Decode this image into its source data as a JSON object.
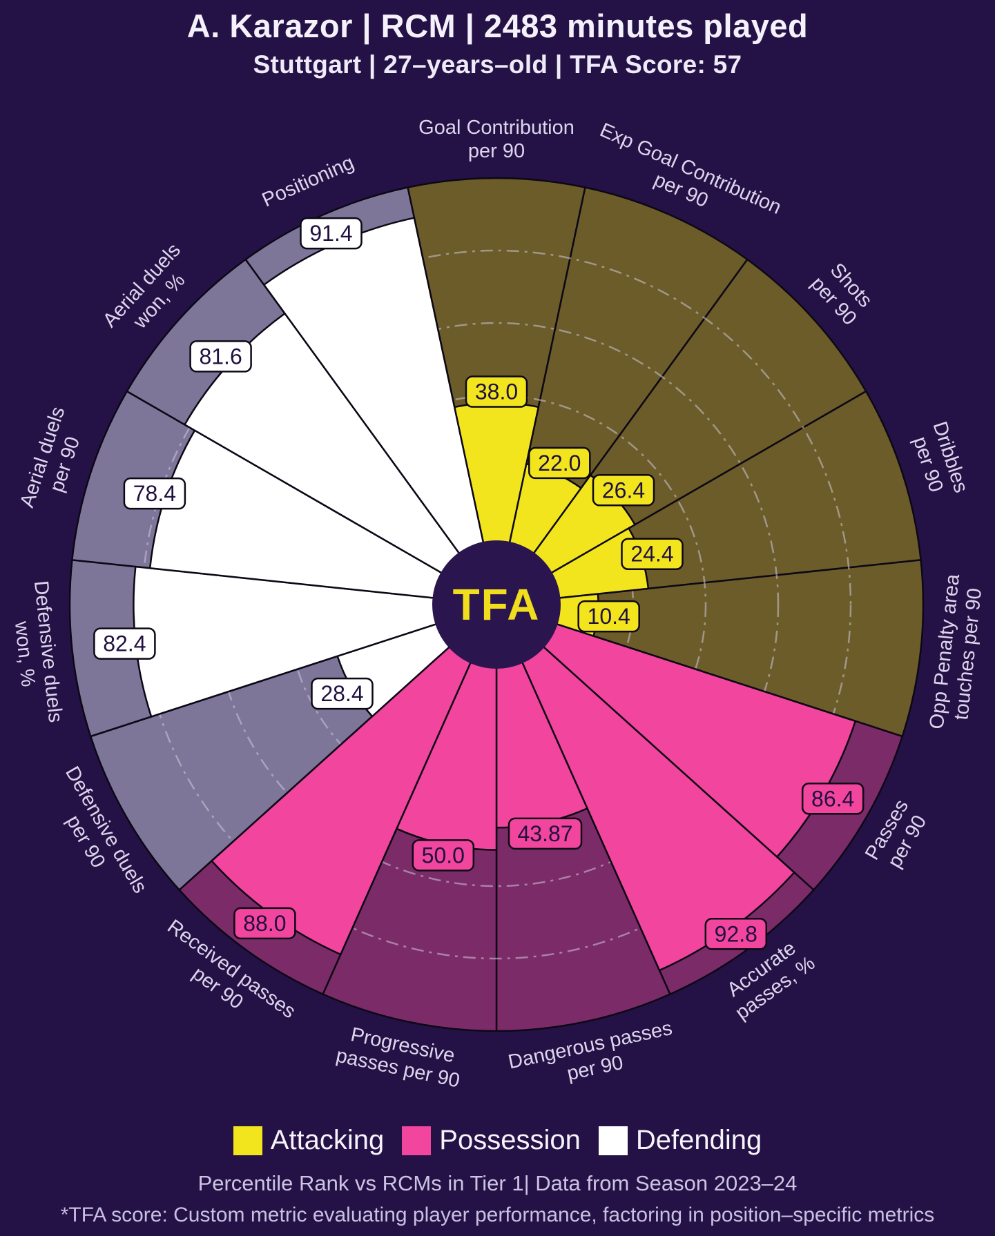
{
  "header": {
    "title": "A. Karazor | RCM | 2483 minutes played",
    "subtitle": "Stuttgart | 27–years–old | TFA Score: 57"
  },
  "chart_data": {
    "type": "bar",
    "style": "polar-pizza-percentile",
    "title": "A. Karazor | RCM | 2483 minutes played",
    "scale": {
      "min": 0,
      "max": 100
    },
    "gridlines": [
      20,
      40,
      60,
      80
    ],
    "center_logo": "TFA",
    "groups": {
      "attacking": {
        "label": "Attacking",
        "fill": "#f2e51d",
        "bg": "#6b5c29"
      },
      "possession": {
        "label": "Possession",
        "fill": "#f2459e",
        "bg": "#7c2b69"
      },
      "defending": {
        "label": "Defending",
        "fill": "#ffffff",
        "bg": "#7d7699"
      }
    },
    "slices": [
      {
        "label_lines": [
          "Goal Contribution",
          "per 90"
        ],
        "value": 38.0,
        "value_label": "38.0",
        "group": "attacking"
      },
      {
        "label_lines": [
          "Exp Goal Contribution",
          "per 90"
        ],
        "value": 22.0,
        "value_label": "22.0",
        "group": "attacking"
      },
      {
        "label_lines": [
          "Shots",
          "per 90"
        ],
        "value": 26.4,
        "value_label": "26.4",
        "group": "attacking"
      },
      {
        "label_lines": [
          "Dribbles",
          "per 90"
        ],
        "value": 24.4,
        "value_label": "24.4",
        "group": "attacking"
      },
      {
        "label_lines": [
          "Opp Penalty area",
          "touches per 90"
        ],
        "value": 10.4,
        "value_label": "10.4",
        "group": "attacking"
      },
      {
        "label_lines": [
          "Passes",
          "per 90"
        ],
        "value": 86.4,
        "value_label": "86.4",
        "group": "possession"
      },
      {
        "label_lines": [
          "Accurate",
          "passes, %"
        ],
        "value": 92.8,
        "value_label": "92.8",
        "group": "possession"
      },
      {
        "label_lines": [
          "Dangerous passes",
          "per 90"
        ],
        "value": 43.87,
        "value_label": "43.87",
        "group": "possession"
      },
      {
        "label_lines": [
          "Progressive",
          "passes per 90"
        ],
        "value": 50.0,
        "value_label": "50.0",
        "group": "possession"
      },
      {
        "label_lines": [
          "Received passes",
          "per 90"
        ],
        "value": 88.0,
        "value_label": "88.0",
        "group": "possession"
      },
      {
        "label_lines": [
          "Defensive duels",
          "per 90"
        ],
        "value": 28.4,
        "value_label": "28.4",
        "group": "defending"
      },
      {
        "label_lines": [
          "Defensive duels",
          "won, %"
        ],
        "value": 82.4,
        "value_label": "82.4",
        "group": "defending"
      },
      {
        "label_lines": [
          "Aerial duels",
          "per 90"
        ],
        "value": 78.4,
        "value_label": "78.4",
        "group": "defending"
      },
      {
        "label_lines": [
          "Aerial duels",
          "won, %"
        ],
        "value": 81.6,
        "value_label": "81.6",
        "group": "defending"
      },
      {
        "label_lines": [
          "Positioning"
        ],
        "value": 91.4,
        "value_label": "91.4",
        "group": "defending"
      }
    ]
  },
  "legend": {
    "items": [
      {
        "key": "attacking",
        "label": "Attacking",
        "color": "#f2e51d"
      },
      {
        "key": "possession",
        "label": "Possession",
        "color": "#f2459e"
      },
      {
        "key": "defending",
        "label": "Defending",
        "color": "#ffffff"
      }
    ]
  },
  "footer": {
    "caption": "Percentile Rank vs RCMs in Tier 1| Data from Season 2023–24",
    "note": "*TFA score: Custom metric evaluating player performance, factoring in position–specific metrics"
  },
  "colors": {
    "background": "#241246",
    "title_text": "#f5f1fb",
    "axis_label": "#ddd5ec",
    "caption_text": "#cdc3e4",
    "grid": "#cdc8d8",
    "outline": "#0c0815",
    "value_text": "#201040",
    "center_circle": "#2a154e",
    "logo_text": "#f0dd1d"
  }
}
